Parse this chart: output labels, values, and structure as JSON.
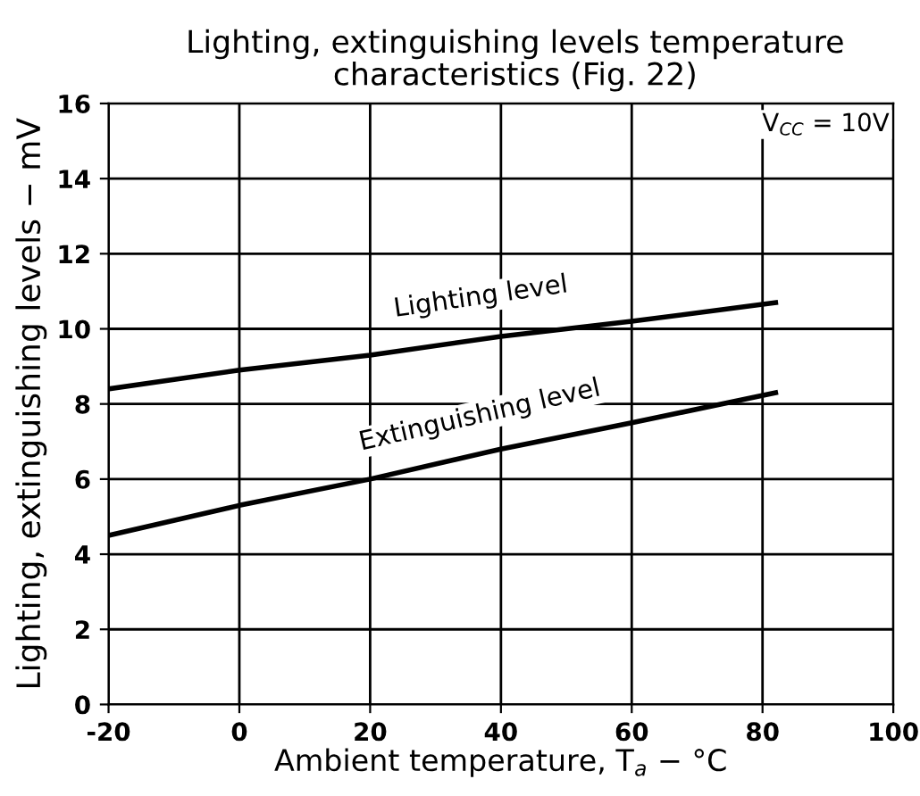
{
  "chart_data": {
    "type": "line",
    "title": "Lighting, extinguishing levels temperature\ncharacteristics (Fig. 22)",
    "xlabel": "Ambient temperature, T$_{a}$ − °C",
    "ylabel": "Lighting, extinguishing levels − mV",
    "annotations": [
      "V$_{CC}$ = 10V"
    ],
    "series": [
      {
        "name": "Lighting level",
        "color": "#000000",
        "x": [
          -20,
          0,
          20,
          40,
          60,
          82
        ],
        "values": [
          8.4,
          8.9,
          9.3,
          9.8,
          10.2,
          10.7
        ]
      },
      {
        "name": "Extinguishing level",
        "color": "#000000",
        "x": [
          -20,
          0,
          20,
          40,
          60,
          82
        ],
        "values": [
          4.5,
          5.3,
          6.0,
          6.8,
          7.5,
          8.3
        ]
      }
    ],
    "xlim": [
      -20,
      100
    ],
    "xticks": [
      -20,
      0,
      20,
      40,
      60,
      80,
      100
    ],
    "ylim": [
      0,
      16
    ],
    "yticks": [
      0,
      2,
      4,
      6,
      8,
      10,
      12,
      14,
      16
    ],
    "grid": true,
    "legend": false,
    "marker": "none",
    "line_style": "solid"
  }
}
